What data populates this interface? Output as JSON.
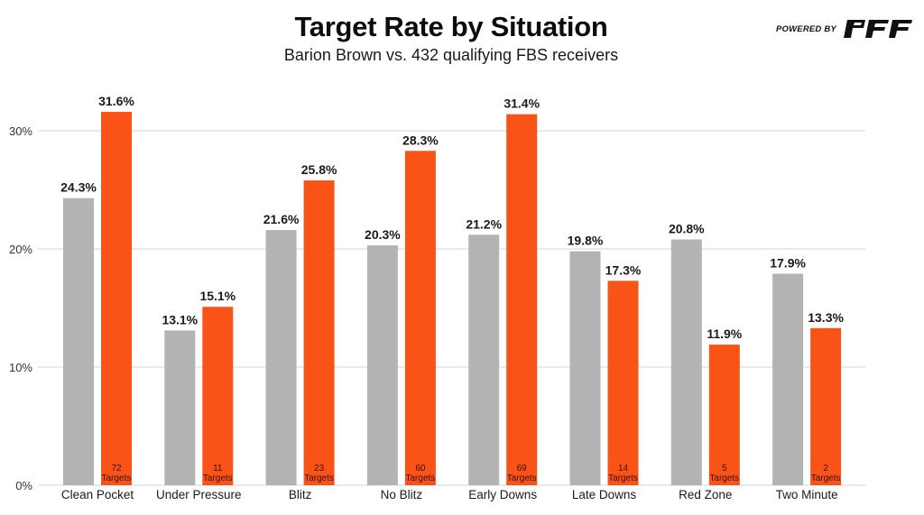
{
  "header": {
    "title": "Target Rate by Situation",
    "subtitle": "Barion Brown vs. 432 qualifying FBS receivers",
    "brand_prefix": "POWERED BY",
    "brand_logo": "PFF"
  },
  "colors": {
    "comparison": "#b3b3b3",
    "player": "#f95318",
    "grid": "#e4e4e4",
    "text": "#1a1a1a"
  },
  "chart_data": {
    "type": "bar",
    "title": "Target Rate by Situation",
    "subtitle": "Barion Brown vs. 432 qualifying FBS receivers",
    "xlabel": "",
    "ylabel": "",
    "ylim": [
      0,
      32
    ],
    "yticks": [
      0,
      10,
      20,
      30
    ],
    "ytick_labels": [
      "0%",
      "10%",
      "20%",
      "30%"
    ],
    "grid": true,
    "legend": "none",
    "categories": [
      "Clean Pocket",
      "Under Pressure",
      "Blitz",
      "No Blitz",
      "Early Downs",
      "Late Downs",
      "Red Zone",
      "Two Minute"
    ],
    "series": [
      {
        "name": "432 qualifying FBS receivers",
        "color": "#b3b3b3",
        "values": [
          24.3,
          13.1,
          21.6,
          20.3,
          21.2,
          19.8,
          20.8,
          17.9
        ],
        "labels": [
          "24.3%",
          "13.1%",
          "21.6%",
          "20.3%",
          "21.2%",
          "19.8%",
          "20.8%",
          "17.9%"
        ]
      },
      {
        "name": "Barion Brown",
        "color": "#f95318",
        "values": [
          31.6,
          15.1,
          25.8,
          28.3,
          31.4,
          17.3,
          11.9,
          13.3
        ],
        "labels": [
          "31.6%",
          "15.1%",
          "25.8%",
          "28.3%",
          "31.4%",
          "17.3%",
          "11.9%",
          "13.3%"
        ],
        "targets": [
          72,
          11,
          23,
          60,
          69,
          14,
          5,
          2
        ],
        "targets_suffix": "Targets"
      }
    ]
  }
}
